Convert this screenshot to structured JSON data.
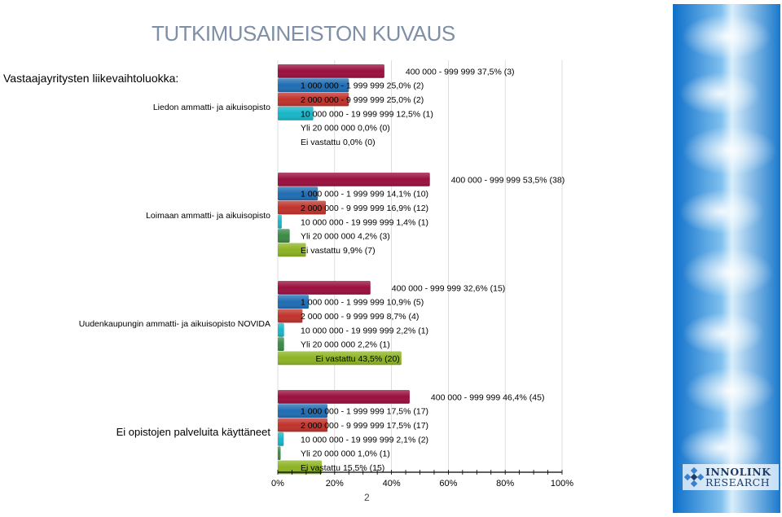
{
  "page": {
    "title": "TUTKIMUSAINEISTON KUVAUS",
    "subtitle": "Vastaajayritysten liikevaihtoluokka:",
    "page_number": "2"
  },
  "logo": {
    "name": "INNOLINK",
    "sub": "RESEARCH"
  },
  "chart_data": {
    "type": "bar",
    "orientation": "horizontal",
    "xlim": [
      0,
      100
    ],
    "x_ticks": [
      "0%",
      "20%",
      "40%",
      "60%",
      "80%",
      "100%"
    ],
    "series_colors": [
      "#9a0f3e",
      "#1f6db3",
      "#c0322b",
      "#17b6c8",
      "#3a8a45",
      "#8db324"
    ],
    "groups": [
      {
        "name": "Liedon ammatti- ja aikuisopisto",
        "bars": [
          {
            "value": 37.5,
            "label": "400 000 - 999 999 37,5% (3)"
          },
          {
            "value": 25.0,
            "label": "1 000 000 - 1 999 999 25,0% (2)"
          },
          {
            "value": 25.0,
            "label": "2 000 000 - 9 999 999 25,0% (2)"
          },
          {
            "value": 12.5,
            "label": "10 000 000 - 19 999 999 12,5% (1)"
          },
          {
            "value": 0.0,
            "label": "Yli 20 000 000 0,0% (0)"
          },
          {
            "value": 0.0,
            "label": "Ei vastattu 0,0% (0)"
          }
        ]
      },
      {
        "name": "Loimaan ammatti- ja aikuisopisto",
        "bars": [
          {
            "value": 53.5,
            "label": "400 000 - 999 999 53,5% (38)"
          },
          {
            "value": 14.1,
            "label": "1 000 000 - 1 999 999 14,1% (10)"
          },
          {
            "value": 16.9,
            "label": "2 000 000 - 9 999 999 16,9% (12)"
          },
          {
            "value": 1.4,
            "label": "10 000 000 - 19 999 999 1,4% (1)"
          },
          {
            "value": 4.2,
            "label": "Yli 20 000 000 4,2% (3)"
          },
          {
            "value": 9.9,
            "label": "Ei vastattu 9,9% (7)"
          }
        ]
      },
      {
        "name": "Uudenkaupungin ammatti- ja aikuisopisto NOVIDA",
        "bars": [
          {
            "value": 32.6,
            "label": "400 000 - 999 999 32,6% (15)"
          },
          {
            "value": 10.9,
            "label": "1 000 000 - 1 999 999 10,9% (5)"
          },
          {
            "value": 8.7,
            "label": "2 000 000 - 9 999 999 8,7% (4)"
          },
          {
            "value": 2.2,
            "label": "10 000 000 - 19 999 999 2,2% (1)"
          },
          {
            "value": 2.2,
            "label": "Yli 20 000 000 2,2% (1)"
          },
          {
            "value": 43.5,
            "label": "Ei vastattu 43,5% (20)"
          }
        ]
      },
      {
        "name": "Ei opistojen palveluita käyttäneet",
        "bars": [
          {
            "value": 46.4,
            "label": "400 000 - 999 999 46,4% (45)"
          },
          {
            "value": 17.5,
            "label": "1 000 000 - 1 999 999 17,5% (17)"
          },
          {
            "value": 17.5,
            "label": "2 000 000 - 9 999 999 17,5% (17)"
          },
          {
            "value": 2.1,
            "label": "10 000 000 - 19 999 999 2,1% (2)"
          },
          {
            "value": 1.0,
            "label": "Yli 20 000 000 1,0% (1)"
          },
          {
            "value": 15.5,
            "label": "Ei vastattu 15,5% (15)"
          }
        ]
      }
    ]
  }
}
